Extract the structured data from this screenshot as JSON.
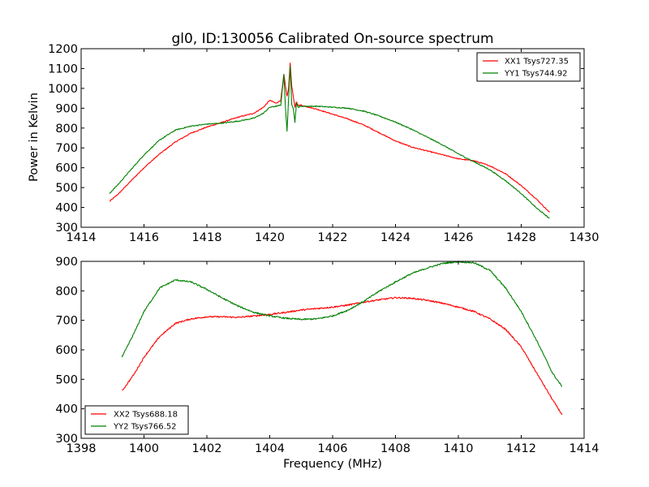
{
  "chart_data": [
    {
      "type": "line",
      "title": "gl0, ID:130056 Calibrated On-source spectrum",
      "xlabel": "",
      "ylabel": "Power in Kelvin",
      "xlim": [
        1414,
        1430
      ],
      "ylim": [
        300,
        1200
      ],
      "xticks": [
        1414,
        1416,
        1418,
        1420,
        1422,
        1424,
        1426,
        1428,
        1430
      ],
      "yticks": [
        300,
        400,
        500,
        600,
        700,
        800,
        900,
        1000,
        1100,
        1200
      ],
      "legend_position": "top-right",
      "series": [
        {
          "name": "XX1 Tsys727.35",
          "color": "#ff0000",
          "points": [
            [
              1414.9,
              430
            ],
            [
              1415.2,
              470
            ],
            [
              1415.5,
              520
            ],
            [
              1416,
              600
            ],
            [
              1416.5,
              670
            ],
            [
              1417,
              730
            ],
            [
              1417.5,
              775
            ],
            [
              1418,
              805
            ],
            [
              1418.5,
              830
            ],
            [
              1419,
              855
            ],
            [
              1419.5,
              875
            ],
            [
              1419.8,
              905
            ],
            [
              1420,
              940
            ],
            [
              1420.2,
              925
            ],
            [
              1420.35,
              940
            ],
            [
              1420.45,
              1070
            ],
            [
              1420.5,
              1010
            ],
            [
              1420.55,
              960
            ],
            [
              1420.6,
              1000
            ],
            [
              1420.65,
              1130
            ],
            [
              1420.7,
              1010
            ],
            [
              1420.75,
              960
            ],
            [
              1420.8,
              905
            ],
            [
              1420.85,
              930
            ],
            [
              1420.9,
              915
            ],
            [
              1421,
              915
            ],
            [
              1421.5,
              895
            ],
            [
              1422,
              870
            ],
            [
              1422.5,
              845
            ],
            [
              1423,
              815
            ],
            [
              1423.5,
              775
            ],
            [
              1424,
              735
            ],
            [
              1424.5,
              705
            ],
            [
              1425,
              685
            ],
            [
              1425.5,
              665
            ],
            [
              1426,
              645
            ],
            [
              1426.5,
              635
            ],
            [
              1427,
              610
            ],
            [
              1427.5,
              570
            ],
            [
              1428,
              510
            ],
            [
              1428.5,
              440
            ],
            [
              1428.9,
              375
            ]
          ]
        },
        {
          "name": "YY1 Tsys744.92",
          "color": "#008000",
          "points": [
            [
              1414.9,
              470
            ],
            [
              1415.2,
              520
            ],
            [
              1415.5,
              575
            ],
            [
              1416,
              665
            ],
            [
              1416.5,
              740
            ],
            [
              1417,
              790
            ],
            [
              1417.5,
              810
            ],
            [
              1418,
              820
            ],
            [
              1418.5,
              825
            ],
            [
              1419,
              835
            ],
            [
              1419.5,
              850
            ],
            [
              1419.8,
              875
            ],
            [
              1420,
              905
            ],
            [
              1420.2,
              910
            ],
            [
              1420.35,
              915
            ],
            [
              1420.45,
              1070
            ],
            [
              1420.5,
              900
            ],
            [
              1420.55,
              785
            ],
            [
              1420.6,
              950
            ],
            [
              1420.65,
              1110
            ],
            [
              1420.7,
              920
            ],
            [
              1420.75,
              900
            ],
            [
              1420.8,
              830
            ],
            [
              1420.85,
              925
            ],
            [
              1420.9,
              905
            ],
            [
              1421,
              910
            ],
            [
              1421.5,
              910
            ],
            [
              1422,
              905
            ],
            [
              1422.5,
              900
            ],
            [
              1423,
              885
            ],
            [
              1423.5,
              860
            ],
            [
              1424,
              830
            ],
            [
              1424.5,
              795
            ],
            [
              1425,
              755
            ],
            [
              1425.5,
              715
            ],
            [
              1426,
              670
            ],
            [
              1426.5,
              630
            ],
            [
              1427,
              590
            ],
            [
              1427.5,
              535
            ],
            [
              1428,
              470
            ],
            [
              1428.5,
              395
            ],
            [
              1428.9,
              345
            ]
          ]
        }
      ]
    },
    {
      "type": "line",
      "title": "",
      "xlabel": "Frequency (MHz)",
      "ylabel": "",
      "xlim": [
        1398,
        1414
      ],
      "ylim": [
        300,
        900
      ],
      "xticks": [
        1398,
        1400,
        1402,
        1404,
        1406,
        1408,
        1410,
        1412,
        1414
      ],
      "yticks": [
        300,
        400,
        500,
        600,
        700,
        800,
        900
      ],
      "legend_position": "bottom-left",
      "series": [
        {
          "name": "XX2 Tsys688.18",
          "color": "#ff0000",
          "points": [
            [
              1399.3,
              460
            ],
            [
              1399.7,
              520
            ],
            [
              1400,
              575
            ],
            [
              1400.5,
              645
            ],
            [
              1401,
              690
            ],
            [
              1401.5,
              705
            ],
            [
              1402,
              712
            ],
            [
              1402.5,
              712
            ],
            [
              1403,
              710
            ],
            [
              1403.5,
              715
            ],
            [
              1404,
              720
            ],
            [
              1404.5,
              727
            ],
            [
              1405,
              735
            ],
            [
              1405.5,
              740
            ],
            [
              1406,
              745
            ],
            [
              1406.5,
              752
            ],
            [
              1407,
              762
            ],
            [
              1407.5,
              770
            ],
            [
              1408,
              777
            ],
            [
              1408.5,
              775
            ],
            [
              1409,
              768
            ],
            [
              1409.5,
              758
            ],
            [
              1410,
              745
            ],
            [
              1410.5,
              730
            ],
            [
              1411,
              705
            ],
            [
              1411.5,
              670
            ],
            [
              1412,
              610
            ],
            [
              1412.5,
              520
            ],
            [
              1413,
              430
            ],
            [
              1413.3,
              380
            ]
          ]
        },
        {
          "name": "YY2 Tsys766.52",
          "color": "#008000",
          "points": [
            [
              1399.3,
              575
            ],
            [
              1399.7,
              660
            ],
            [
              1400,
              730
            ],
            [
              1400.5,
              810
            ],
            [
              1401,
              837
            ],
            [
              1401.5,
              830
            ],
            [
              1402,
              805
            ],
            [
              1402.5,
              775
            ],
            [
              1403,
              748
            ],
            [
              1403.5,
              727
            ],
            [
              1404,
              715
            ],
            [
              1404.5,
              707
            ],
            [
              1405,
              703
            ],
            [
              1405.5,
              705
            ],
            [
              1406,
              715
            ],
            [
              1406.5,
              735
            ],
            [
              1407,
              765
            ],
            [
              1407.5,
              800
            ],
            [
              1408,
              830
            ],
            [
              1408.5,
              858
            ],
            [
              1409,
              877
            ],
            [
              1409.5,
              893
            ],
            [
              1410,
              899
            ],
            [
              1410.5,
              895
            ],
            [
              1411,
              870
            ],
            [
              1411.5,
              810
            ],
            [
              1412,
              730
            ],
            [
              1412.5,
              630
            ],
            [
              1413,
              520
            ],
            [
              1413.3,
              475
            ]
          ]
        }
      ]
    }
  ]
}
